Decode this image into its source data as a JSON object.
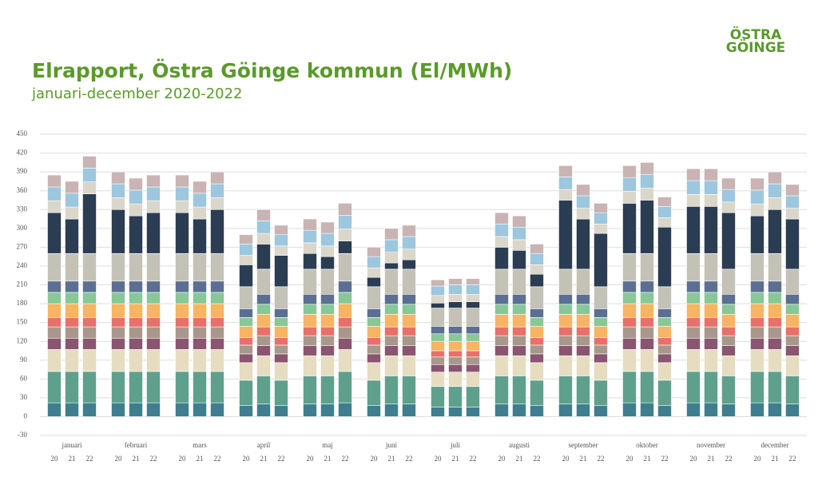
{
  "logo": [
    "ÖSTRA",
    "GÖINGE"
  ],
  "chart_data": {
    "type": "stacked-bar",
    "title": "Elrapport, Östra Göinge kommun (El/MWh)",
    "subtitle": "januari-december 2020-2022",
    "categories": [
      "januari",
      "februari",
      "mars",
      "april",
      "maj",
      "juni",
      "juli",
      "augusti",
      "september",
      "oktober",
      "november",
      "december"
    ],
    "subcategories": [
      "20",
      "21",
      "22"
    ],
    "ylim": [
      -30,
      450
    ],
    "yticks": [
      -30,
      0,
      30,
      60,
      90,
      120,
      150,
      180,
      210,
      240,
      270,
      300,
      330,
      360,
      390,
      420,
      450
    ],
    "grid": true,
    "series": [
      {
        "color": "#3f7e8e",
        "values": [
          [
            22,
            22,
            22
          ],
          [
            22,
            22,
            22
          ],
          [
            22,
            22,
            22
          ],
          [
            18,
            20,
            18
          ],
          [
            20,
            20,
            22
          ],
          [
            18,
            20,
            20
          ],
          [
            15,
            15,
            15
          ],
          [
            20,
            20,
            18
          ],
          [
            20,
            20,
            18
          ],
          [
            22,
            22,
            18
          ],
          [
            22,
            22,
            20
          ],
          [
            22,
            22,
            20
          ]
        ]
      },
      {
        "color": "#5fa08c",
        "values": [
          [
            50,
            50,
            50
          ],
          [
            50,
            50,
            50
          ],
          [
            50,
            50,
            50
          ],
          [
            40,
            45,
            40
          ],
          [
            45,
            45,
            50
          ],
          [
            40,
            45,
            45
          ],
          [
            33,
            33,
            33
          ],
          [
            45,
            45,
            40
          ],
          [
            45,
            45,
            40
          ],
          [
            50,
            50,
            40
          ],
          [
            50,
            50,
            45
          ],
          [
            50,
            50,
            45
          ]
        ]
      },
      {
        "color": "#e6dcc0",
        "values": [
          [
            35,
            35,
            35
          ],
          [
            35,
            35,
            35
          ],
          [
            35,
            35,
            35
          ],
          [
            28,
            32,
            28
          ],
          [
            32,
            32,
            35
          ],
          [
            28,
            32,
            32
          ],
          [
            23,
            23,
            23
          ],
          [
            32,
            32,
            28
          ],
          [
            32,
            32,
            28
          ],
          [
            35,
            35,
            28
          ],
          [
            35,
            35,
            32
          ],
          [
            35,
            35,
            32
          ]
        ]
      },
      {
        "color": "#8a5570",
        "values": [
          [
            18,
            18,
            18
          ],
          [
            18,
            18,
            18
          ],
          [
            18,
            18,
            18
          ],
          [
            14,
            16,
            14
          ],
          [
            16,
            16,
            18
          ],
          [
            14,
            16,
            16
          ],
          [
            12,
            12,
            12
          ],
          [
            16,
            16,
            14
          ],
          [
            16,
            16,
            14
          ],
          [
            18,
            18,
            14
          ],
          [
            18,
            18,
            16
          ],
          [
            18,
            18,
            16
          ]
        ]
      },
      {
        "color": "#a8988c",
        "values": [
          [
            18,
            18,
            18
          ],
          [
            18,
            18,
            18
          ],
          [
            18,
            18,
            18
          ],
          [
            14,
            16,
            14
          ],
          [
            16,
            16,
            18
          ],
          [
            14,
            16,
            16
          ],
          [
            12,
            12,
            12
          ],
          [
            16,
            16,
            14
          ],
          [
            16,
            16,
            14
          ],
          [
            18,
            18,
            14
          ],
          [
            18,
            18,
            16
          ],
          [
            18,
            18,
            16
          ]
        ]
      },
      {
        "color": "#e8706a",
        "values": [
          [
            15,
            15,
            15
          ],
          [
            15,
            15,
            15
          ],
          [
            15,
            15,
            15
          ],
          [
            12,
            14,
            12
          ],
          [
            14,
            14,
            15
          ],
          [
            12,
            14,
            14
          ],
          [
            10,
            10,
            10
          ],
          [
            14,
            14,
            12
          ],
          [
            14,
            14,
            12
          ],
          [
            15,
            15,
            12
          ],
          [
            15,
            15,
            14
          ],
          [
            15,
            15,
            14
          ]
        ]
      },
      {
        "color": "#f7b462",
        "values": [
          [
            22,
            22,
            22
          ],
          [
            22,
            22,
            22
          ],
          [
            22,
            22,
            22
          ],
          [
            18,
            20,
            18
          ],
          [
            20,
            20,
            22
          ],
          [
            18,
            20,
            20
          ],
          [
            15,
            15,
            15
          ],
          [
            20,
            20,
            18
          ],
          [
            20,
            20,
            18
          ],
          [
            22,
            22,
            18
          ],
          [
            22,
            22,
            20
          ],
          [
            22,
            22,
            20
          ]
        ]
      },
      {
        "color": "#86c896",
        "values": [
          [
            18,
            18,
            18
          ],
          [
            18,
            18,
            18
          ],
          [
            18,
            18,
            18
          ],
          [
            14,
            16,
            14
          ],
          [
            16,
            16,
            18
          ],
          [
            14,
            16,
            16
          ],
          [
            12,
            12,
            12
          ],
          [
            16,
            16,
            14
          ],
          [
            16,
            16,
            14
          ],
          [
            18,
            18,
            14
          ],
          [
            18,
            18,
            16
          ],
          [
            18,
            18,
            16
          ]
        ]
      },
      {
        "color": "#5b6f93",
        "values": [
          [
            18,
            18,
            18
          ],
          [
            18,
            18,
            18
          ],
          [
            18,
            18,
            18
          ],
          [
            14,
            16,
            14
          ],
          [
            16,
            16,
            18
          ],
          [
            14,
            16,
            16
          ],
          [
            12,
            12,
            12
          ],
          [
            16,
            16,
            14
          ],
          [
            16,
            16,
            14
          ],
          [
            18,
            18,
            14
          ],
          [
            18,
            18,
            16
          ],
          [
            18,
            18,
            16
          ]
        ]
      },
      {
        "color": "#c4c2b6",
        "values": [
          [
            44,
            44,
            44
          ],
          [
            44,
            44,
            44
          ],
          [
            44,
            44,
            44
          ],
          [
            35,
            40,
            35
          ],
          [
            40,
            40,
            44
          ],
          [
            35,
            40,
            40
          ],
          [
            29,
            29,
            29
          ],
          [
            40,
            40,
            35
          ],
          [
            40,
            40,
            35
          ],
          [
            44,
            44,
            35
          ],
          [
            44,
            44,
            40
          ],
          [
            44,
            44,
            40
          ]
        ]
      },
      {
        "color": "#2b3d52",
        "values": [
          [
            65,
            55,
            95
          ],
          [
            70,
            60,
            65
          ],
          [
            65,
            55,
            70
          ],
          [
            35,
            40,
            50
          ],
          [
            25,
            20,
            20
          ],
          [
            15,
            10,
            15
          ],
          [
            8,
            10,
            10
          ],
          [
            35,
            30,
            20
          ],
          [
            110,
            80,
            85
          ],
          [
            80,
            85,
            95
          ],
          [
            75,
            75,
            90
          ],
          [
            60,
            70,
            80
          ]
        ]
      },
      {
        "color": "#dad6c9",
        "values": [
          [
            19,
            19,
            19
          ],
          [
            19,
            19,
            19
          ],
          [
            19,
            19,
            19
          ],
          [
            15,
            17,
            15
          ],
          [
            17,
            17,
            19
          ],
          [
            15,
            17,
            17
          ],
          [
            12,
            12,
            12
          ],
          [
            17,
            17,
            15
          ],
          [
            17,
            17,
            15
          ],
          [
            19,
            19,
            15
          ],
          [
            19,
            19,
            17
          ],
          [
            19,
            19,
            17
          ]
        ]
      },
      {
        "color": "#9cc7de",
        "values": [
          [
            22,
            22,
            22
          ],
          [
            22,
            22,
            22
          ],
          [
            22,
            22,
            22
          ],
          [
            18,
            20,
            18
          ],
          [
            20,
            20,
            22
          ],
          [
            18,
            20,
            20
          ],
          [
            15,
            15,
            15
          ],
          [
            20,
            20,
            18
          ],
          [
            20,
            20,
            18
          ],
          [
            22,
            22,
            18
          ],
          [
            22,
            22,
            20
          ],
          [
            22,
            22,
            20
          ]
        ]
      },
      {
        "color": "#c9b3b3",
        "values": [
          [
            19,
            19,
            19
          ],
          [
            19,
            19,
            19
          ],
          [
            19,
            19,
            19
          ],
          [
            15,
            18,
            15
          ],
          [
            18,
            18,
            19
          ],
          [
            15,
            18,
            18
          ],
          [
            10,
            10,
            10
          ],
          [
            18,
            18,
            15
          ],
          [
            18,
            18,
            15
          ],
          [
            19,
            19,
            15
          ],
          [
            19,
            19,
            18
          ],
          [
            19,
            19,
            18
          ]
        ]
      }
    ]
  }
}
